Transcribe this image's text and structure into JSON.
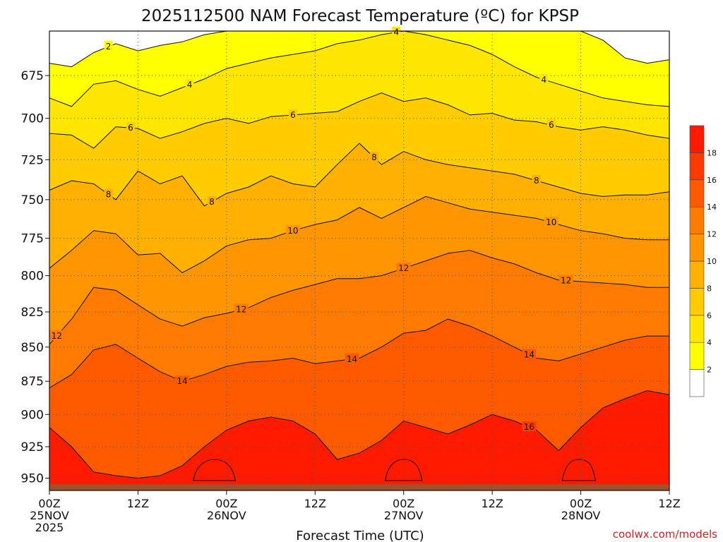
{
  "chart_data": {
    "type": "heatmap",
    "title": "2025112500 NAM Forecast Temperature (ºC) for KPSP",
    "xlabel": "Forecast Time (UTC)",
    "ylabel": "",
    "y_axis": {
      "ticks": [
        "675",
        "700",
        "725",
        "750",
        "775",
        "800",
        "825",
        "850",
        "875",
        "900",
        "925",
        "950"
      ],
      "ylim": [
        960,
        650
      ],
      "scale": "log-pressure"
    },
    "x_axis": {
      "ticks": [
        {
          "hour": 0,
          "label": "00Z",
          "sub": "25NOV",
          "sub2": "2025"
        },
        {
          "hour": 12,
          "label": "12Z",
          "sub": "",
          "sub2": ""
        },
        {
          "hour": 24,
          "label": "00Z",
          "sub": "26NOV",
          "sub2": ""
        },
        {
          "hour": 36,
          "label": "12Z",
          "sub": "",
          "sub2": ""
        },
        {
          "hour": 48,
          "label": "00Z",
          "sub": "27NOV",
          "sub2": ""
        },
        {
          "hour": 60,
          "label": "12Z",
          "sub": "",
          "sub2": ""
        },
        {
          "hour": 72,
          "label": "00Z",
          "sub": "28NOV",
          "sub2": ""
        },
        {
          "hour": 84,
          "label": "12Z",
          "sub": "",
          "sub2": ""
        }
      ],
      "xlim": [
        0,
        84
      ]
    },
    "grid": true,
    "colorbar": {
      "levels": [
        2,
        4,
        6,
        8,
        10,
        12,
        14,
        16,
        18
      ],
      "colors": [
        "#ffffff",
        "#ffff00",
        "#ffe600",
        "#ffcc00",
        "#ffb000",
        "#ff9500",
        "#ff7a00",
        "#ff5a00",
        "#ff3a00",
        "#ff1a00"
      ]
    },
    "hours": [
      0,
      3,
      6,
      9,
      12,
      15,
      18,
      21,
      24,
      27,
      30,
      33,
      36,
      39,
      42,
      45,
      48,
      51,
      54,
      57,
      60,
      63,
      66,
      69,
      72,
      75,
      78,
      81,
      84
    ],
    "isotherms": [
      {
        "value": 2,
        "pressures": [
          668,
          670,
          662,
          657,
          661,
          658,
          656,
          652,
          650,
          650,
          650,
          650,
          650,
          650,
          650,
          650,
          650,
          650,
          650,
          650,
          650,
          650,
          650,
          650,
          650,
          655,
          665,
          668,
          666
        ],
        "labels": [
          {
            "hour": 8,
            "text": "2"
          }
        ]
      },
      {
        "value": 4,
        "pressures": [
          688,
          693,
          680,
          678,
          683,
          687,
          682,
          677,
          671,
          668,
          665,
          663,
          661,
          657,
          655,
          652,
          650,
          652,
          655,
          658,
          663,
          670,
          676,
          680,
          684,
          688,
          690,
          692,
          693
        ],
        "labels": [
          {
            "hour": 19,
            "text": "4"
          },
          {
            "hour": 47,
            "text": "4"
          },
          {
            "hour": 67,
            "text": "4"
          }
        ]
      },
      {
        "value": 6,
        "pressures": [
          709,
          710,
          718,
          705,
          706,
          712,
          708,
          703,
          700,
          703,
          699,
          698,
          697,
          696,
          690,
          685,
          690,
          688,
          692,
          698,
          697,
          701,
          702,
          705,
          707,
          705,
          707,
          710,
          712
        ],
        "labels": [
          {
            "hour": 11,
            "text": "6"
          },
          {
            "hour": 33,
            "text": "6"
          },
          {
            "hour": 68,
            "text": "6"
          }
        ]
      },
      {
        "value": 8,
        "pressures": [
          744,
          738,
          740,
          750,
          732,
          740,
          735,
          754,
          746,
          742,
          735,
          740,
          742,
          728,
          715,
          728,
          720,
          725,
          728,
          730,
          732,
          734,
          738,
          742,
          746,
          748,
          747,
          747,
          745
        ],
        "labels": [
          {
            "hour": 8,
            "text": "8"
          },
          {
            "hour": 22,
            "text": "8"
          },
          {
            "hour": 44,
            "text": "8"
          },
          {
            "hour": 66,
            "text": "8"
          }
        ]
      },
      {
        "value": 10,
        "pressures": [
          795,
          783,
          770,
          772,
          786,
          785,
          798,
          790,
          780,
          776,
          775,
          770,
          766,
          763,
          755,
          762,
          755,
          748,
          752,
          756,
          758,
          760,
          762,
          766,
          770,
          772,
          775,
          776,
          776
        ],
        "labels": [
          {
            "hour": 33,
            "text": "10"
          },
          {
            "hour": 68,
            "text": "10"
          }
        ]
      },
      {
        "value": 12,
        "pressures": [
          848,
          830,
          808,
          810,
          820,
          830,
          835,
          829,
          826,
          822,
          815,
          810,
          806,
          802,
          802,
          800,
          795,
          790,
          785,
          783,
          788,
          792,
          798,
          803,
          804,
          805,
          806,
          808,
          808
        ],
        "labels": [
          {
            "hour": 1,
            "text": "12"
          },
          {
            "hour": 26,
            "text": "12"
          },
          {
            "hour": 48,
            "text": "12"
          },
          {
            "hour": 70,
            "text": "12"
          }
        ]
      },
      {
        "value": 14,
        "pressures": [
          880,
          870,
          852,
          848,
          858,
          868,
          875,
          870,
          864,
          861,
          860,
          858,
          862,
          860,
          858,
          850,
          840,
          838,
          830,
          835,
          842,
          850,
          858,
          860,
          855,
          850,
          845,
          842,
          842
        ],
        "labels": [
          {
            "hour": 18,
            "text": "14"
          },
          {
            "hour": 41,
            "text": "14"
          },
          {
            "hour": 65,
            "text": "14"
          }
        ]
      },
      {
        "value": 16,
        "pressures": [
          910,
          925,
          945,
          948,
          950,
          948,
          940,
          925,
          912,
          905,
          902,
          905,
          915,
          935,
          930,
          920,
          905,
          910,
          915,
          908,
          900,
          905,
          912,
          928,
          910,
          895,
          888,
          882,
          885
        ],
        "labels": [
          {
            "hour": 65,
            "text": "16"
          }
        ]
      }
    ],
    "warm_cells": [
      {
        "value": 18,
        "start_hour": 19.5,
        "end_hour": 25.2,
        "top_pressure": 935
      },
      {
        "value": 18,
        "start_hour": 45.5,
        "end_hour": 50.5,
        "top_pressure": 935
      },
      {
        "value": 18,
        "start_hour": 69.5,
        "end_hour": 74.0,
        "top_pressure": 935
      }
    ],
    "ground": {
      "color": "#a0522d",
      "pressure": 955
    }
  },
  "credit": "coolwx.com/models"
}
